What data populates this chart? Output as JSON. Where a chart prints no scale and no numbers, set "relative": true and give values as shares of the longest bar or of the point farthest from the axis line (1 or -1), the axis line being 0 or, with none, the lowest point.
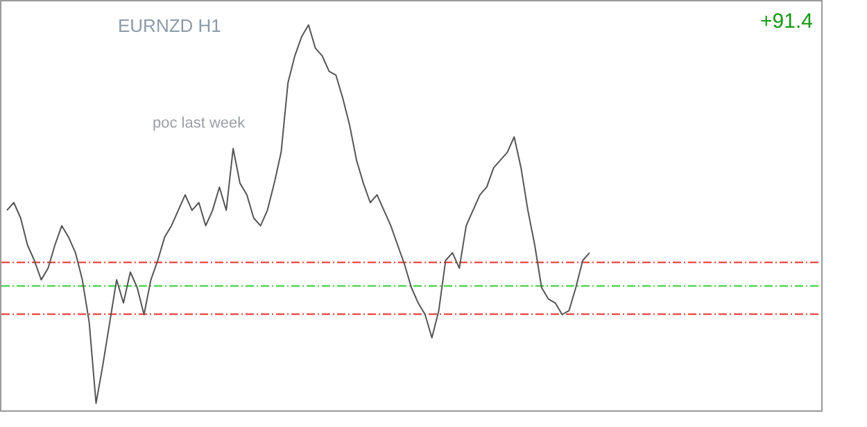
{
  "chart_data": {
    "type": "line",
    "title": "EURNZD H1",
    "relative": true,
    "categories": [
      null,
      null,
      null,
      null,
      null,
      null,
      null,
      null,
      null,
      null,
      null,
      null,
      null,
      null,
      null,
      null,
      null,
      null,
      null,
      null,
      null,
      null,
      null,
      null,
      null,
      null,
      null,
      null,
      null,
      null,
      null,
      null,
      null,
      null,
      null,
      null,
      null,
      null,
      null,
      null,
      null,
      null,
      null,
      null,
      null,
      null,
      null,
      null,
      null,
      null,
      null,
      null,
      null,
      null,
      null,
      null,
      null,
      null,
      null,
      null,
      null,
      null,
      null,
      null,
      null,
      null,
      null,
      null,
      null,
      null,
      null,
      null,
      null,
      null,
      null,
      null,
      null,
      null,
      null,
      null,
      null,
      null,
      null,
      null,
      null,
      null
    ],
    "series": [
      {
        "color": "#555555",
        "values": [
          0.52,
          0.54,
          0.5,
          0.43,
          0.39,
          0.34,
          0.37,
          0.43,
          0.48,
          0.45,
          0.41,
          0.34,
          0.23,
          0.02,
          0.12,
          0.23,
          0.34,
          0.28,
          0.36,
          0.32,
          0.25,
          0.34,
          0.39,
          0.45,
          0.48,
          0.52,
          0.56,
          0.52,
          0.54,
          0.48,
          0.52,
          0.58,
          0.52,
          0.68,
          0.59,
          0.56,
          0.5,
          0.48,
          0.52,
          0.59,
          0.67,
          0.85,
          0.92,
          0.97,
          1,
          0.94,
          0.92,
          0.88,
          0.87,
          0.81,
          0.74,
          0.65,
          0.59,
          0.54,
          0.56,
          0.52,
          0.48,
          0.43,
          0.38,
          0.32,
          0.28,
          0.25,
          0.19,
          0.26,
          0.39,
          0.41,
          0.37,
          0.48,
          0.52,
          0.56,
          0.58,
          0.63,
          0.65,
          0.67,
          0.71,
          0.63,
          0.52,
          0.43,
          0.32,
          0.29,
          0.28,
          0.25,
          0.26,
          0.32,
          0.39,
          0.41
        ]
      }
    ],
    "ref_lines": [
      {
        "axis": "y",
        "value": 0.385,
        "color": "#e8302a",
        "line_style": "dashdot"
      },
      {
        "axis": "y",
        "value": 0.324,
        "color": "#33cc33",
        "line_style": "dashdot"
      },
      {
        "axis": "y",
        "value": 0.251,
        "color": "#e8302a",
        "line_style": "dashdot"
      }
    ],
    "annotations": [
      "poc last week",
      "+91.4"
    ]
  }
}
